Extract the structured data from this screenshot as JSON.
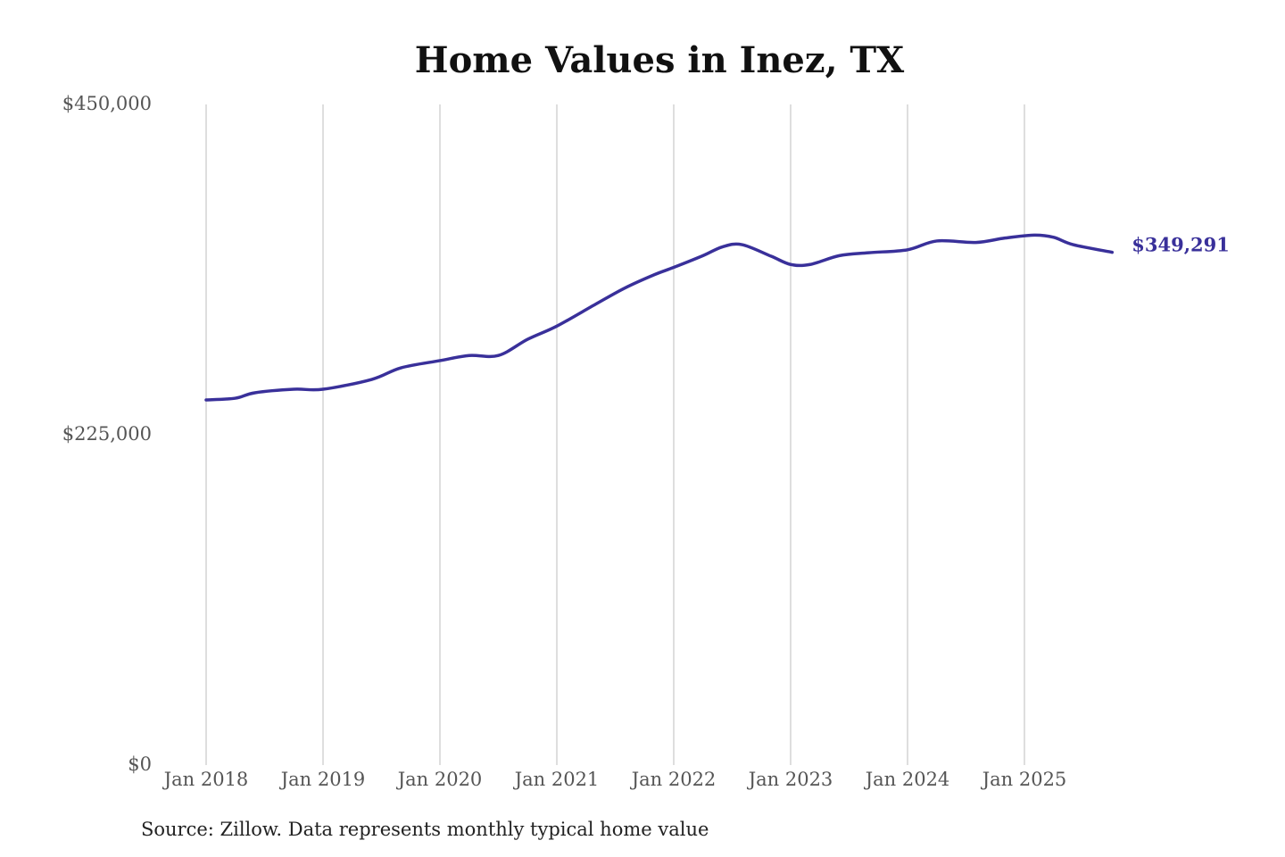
{
  "chart_data": {
    "type": "line",
    "title": "Home Values in Inez, TX",
    "source": "Source: Zillow. Data represents monthly typical home value",
    "xlabel": "",
    "ylabel": "",
    "ylim": [
      0,
      450000
    ],
    "yticks": [
      0,
      225000,
      450000
    ],
    "ytick_labels": [
      "$0",
      "$225,000",
      "$450,000"
    ],
    "xticks": [
      "2018-01",
      "2019-01",
      "2020-01",
      "2021-01",
      "2022-01",
      "2023-01",
      "2024-01",
      "2025-01"
    ],
    "xtick_labels": [
      "Jan 2018",
      "Jan 2019",
      "Jan 2020",
      "Jan 2021",
      "Jan 2022",
      "Jan 2023",
      "Jan 2024",
      "Jan 2025"
    ],
    "xlim": [
      "2018-01",
      "2025-10"
    ],
    "grid": "vertical",
    "line_color": "#39309a",
    "end_label": "$349,291",
    "series": [
      {
        "name": "Typical home value",
        "points": [
          [
            "2018-01",
            248700
          ],
          [
            "2018-04",
            249900
          ],
          [
            "2018-06",
            253600
          ],
          [
            "2018-10",
            256000
          ],
          [
            "2019-01",
            256000
          ],
          [
            "2019-06",
            262700
          ],
          [
            "2019-09",
            270600
          ],
          [
            "2020-01",
            275500
          ],
          [
            "2020-04",
            279000
          ],
          [
            "2020-07",
            279000
          ],
          [
            "2020-10",
            290000
          ],
          [
            "2021-01",
            299000
          ],
          [
            "2021-05",
            314000
          ],
          [
            "2021-08",
            325000
          ],
          [
            "2021-11",
            334000
          ],
          [
            "2022-01",
            339000
          ],
          [
            "2022-04",
            347000
          ],
          [
            "2022-06",
            353000
          ],
          [
            "2022-08",
            354500
          ],
          [
            "2022-11",
            346600
          ],
          [
            "2023-01",
            341000
          ],
          [
            "2023-03",
            341000
          ],
          [
            "2023-06",
            347000
          ],
          [
            "2023-09",
            349000
          ],
          [
            "2024-01",
            351000
          ],
          [
            "2024-04",
            357000
          ],
          [
            "2024-08",
            356000
          ],
          [
            "2024-11",
            359000
          ],
          [
            "2025-02",
            361000
          ],
          [
            "2025-04",
            359500
          ],
          [
            "2025-06",
            354500
          ],
          [
            "2025-10",
            349291
          ]
        ]
      }
    ]
  }
}
